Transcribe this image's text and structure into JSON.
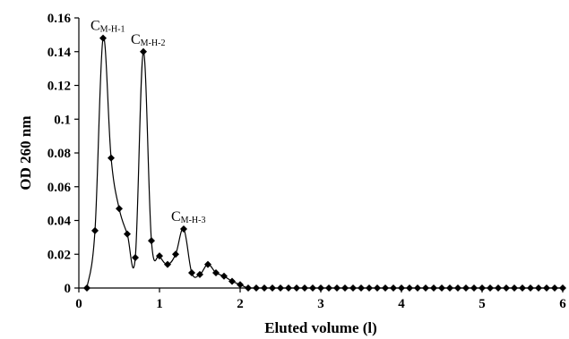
{
  "chart_data": {
    "type": "line",
    "xlabel": "Eluted volume (l)",
    "ylabel": "OD 260 nm",
    "xlim": [
      0,
      6
    ],
    "ylim": [
      0,
      0.16
    ],
    "xticks": [
      "0",
      "1",
      "2",
      "3",
      "4",
      "5",
      "6"
    ],
    "yticks": [
      "0",
      "0.02",
      "0.04",
      "0.06",
      "0.08",
      "0.1",
      "0.12",
      "0.14",
      "0.16"
    ],
    "grid": false,
    "legend": "none",
    "marker": "diamond",
    "color": "#000000",
    "series": [
      {
        "x": [
          0.1,
          0.2,
          0.3,
          0.4,
          0.5,
          0.6,
          0.7,
          0.8,
          0.9,
          1.0,
          1.1,
          1.2,
          1.3,
          1.4,
          1.5,
          1.6,
          1.7,
          1.8,
          1.9,
          2.0,
          2.1,
          2.2,
          2.3,
          2.4,
          2.5,
          2.6,
          2.7,
          2.8,
          2.9,
          3.0,
          3.1,
          3.2,
          3.3,
          3.4,
          3.5,
          3.6,
          3.7,
          3.8,
          3.9,
          4.0,
          4.1,
          4.2,
          4.3,
          4.4,
          4.5,
          4.6,
          4.7,
          4.8,
          4.9,
          5.0,
          5.1,
          5.2,
          5.3,
          5.4,
          5.5,
          5.6,
          5.7,
          5.8,
          5.9,
          6.0
        ],
        "y": [
          0.0,
          0.034,
          0.148,
          0.077,
          0.047,
          0.032,
          0.018,
          0.14,
          0.028,
          0.019,
          0.014,
          0.02,
          0.035,
          0.009,
          0.008,
          0.014,
          0.009,
          0.007,
          0.004,
          0.002,
          0.0,
          0.0,
          0.0,
          0.0,
          0.0,
          0.0,
          0.0,
          0.0,
          0.0,
          0.0,
          0.0,
          0.0,
          0.0,
          0.0,
          0.0,
          0.0,
          0.0,
          0.0,
          0.0,
          0.0,
          0.0,
          0.0,
          0.0,
          0.0,
          0.0,
          0.0,
          0.0,
          0.0,
          0.0,
          0.0,
          0.0,
          0.0,
          0.0,
          0.0,
          0.0,
          0.0,
          0.0,
          0.0,
          0.0,
          0.0
        ]
      }
    ],
    "annotations": [
      {
        "label": "C",
        "sub": "M-H-1",
        "x": 0.3,
        "y": 0.148
      },
      {
        "label": "C",
        "sub": "M-H-2",
        "x": 0.8,
        "y": 0.14
      },
      {
        "label": "C",
        "sub": "M-H-3",
        "x": 1.3,
        "y": 0.035
      }
    ]
  }
}
